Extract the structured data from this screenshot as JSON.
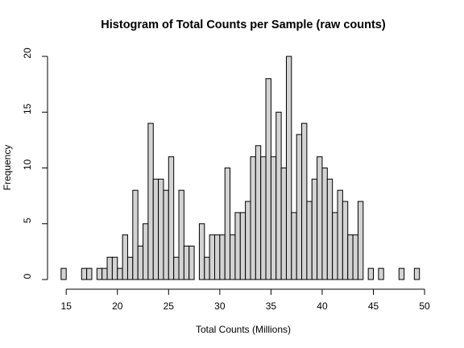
{
  "chart_data": {
    "type": "bar",
    "title": "Histogram of Total Counts per Sample (raw counts)",
    "xlabel": "Total Counts (Millions)",
    "ylabel": "Frequency",
    "xlim": [
      14.5,
      50
    ],
    "ylim": [
      0,
      20
    ],
    "bin_width": 0.5,
    "x_ticks": [
      15,
      20,
      25,
      30,
      35,
      40,
      45,
      50
    ],
    "y_ticks": [
      0,
      5,
      10,
      15,
      20
    ],
    "grid": false,
    "bin_start": 14.5,
    "values": [
      1,
      0,
      0,
      0,
      1,
      1,
      0,
      1,
      1,
      2,
      2,
      1,
      4,
      2,
      8,
      3,
      5,
      14,
      9,
      9,
      8,
      11,
      2,
      8,
      3,
      3,
      0,
      5,
      2,
      4,
      4,
      4,
      10,
      4,
      6,
      6,
      7,
      11,
      12,
      11,
      18,
      11,
      15,
      10,
      20,
      6,
      13,
      14,
      7,
      9,
      11,
      10,
      9,
      6,
      8,
      7,
      4,
      4,
      7,
      0,
      1,
      0,
      1,
      0,
      0,
      0,
      1,
      0,
      0,
      1
    ],
    "bar_color": "#d3d3d3"
  }
}
